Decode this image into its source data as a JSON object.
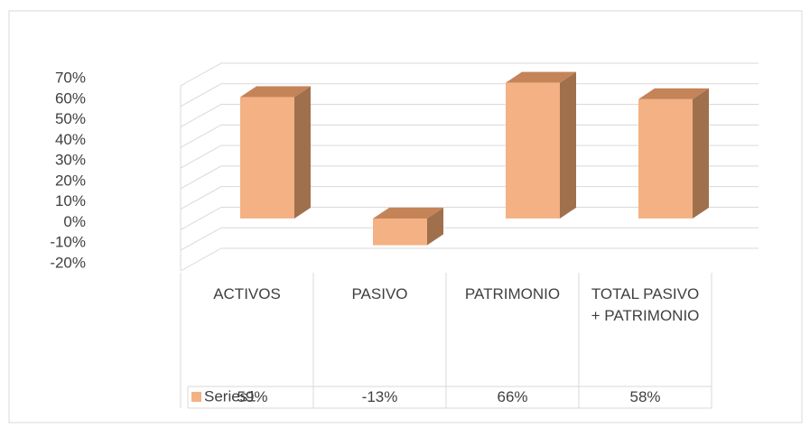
{
  "chart_data": {
    "type": "bar3d",
    "categories": [
      "ACTIVOS",
      "PASIVO",
      "PATRIMONIO",
      "TOTAL PASIVO + PATRIMONIO"
    ],
    "series": [
      {
        "name": "Series1",
        "color": "#f4b183",
        "values": [
          59,
          -13,
          66,
          58
        ],
        "value_labels": [
          "59%",
          "-13%",
          "66%",
          "58%"
        ]
      }
    ],
    "ylim": [
      -20,
      70
    ],
    "yticks": [
      {
        "value": -20,
        "label": "-20%"
      },
      {
        "value": -10,
        "label": "-10%"
      },
      {
        "value": 0,
        "label": "0%"
      },
      {
        "value": 10,
        "label": "10%"
      },
      {
        "value": 20,
        "label": "20%"
      },
      {
        "value": 30,
        "label": "30%"
      },
      {
        "value": 40,
        "label": "40%"
      },
      {
        "value": 50,
        "label": "50%"
      },
      {
        "value": 60,
        "label": "60%"
      },
      {
        "value": 70,
        "label": "70%"
      }
    ],
    "grid": true
  }
}
